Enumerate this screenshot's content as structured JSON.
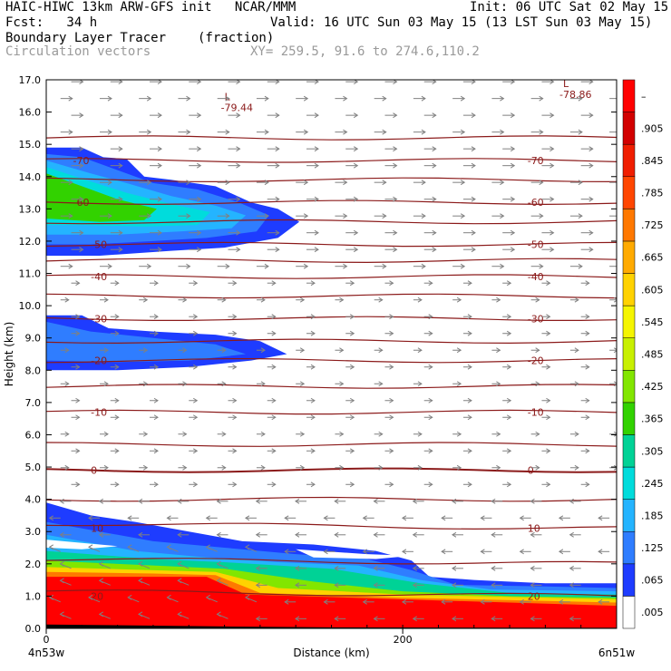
{
  "header": {
    "line1_left": "HAIC-HIWC 13km ARW-GFS init   NCAR/MMM",
    "line1_right": "Init: 06 UTC Sat 02 May 15",
    "fcst": "Fcst:   34 h",
    "valid": "Valid: 16 UTC Sun 03 May 15 (13 LST Sun 03 May 15)",
    "field": "Boundary Layer Tracer",
    "units": "(fraction)",
    "vectors": "Circulation vectors",
    "xy": "XY= 259.5, 91.6 to 274.6,110.2"
  },
  "colors": {
    "contour": "#8b1a1a",
    "vector": "#808080",
    "frame": "#000000"
  },
  "chart_data": {
    "type": "heatmap",
    "title": "Boundary Layer Tracer",
    "units": "(fraction)",
    "xlabel": "Distance (km)",
    "ylabel": "Height (km)",
    "xlim": [
      0,
      320
    ],
    "ylim": [
      0,
      17
    ],
    "x_ticks": [
      {
        "value": 0,
        "label": "0"
      },
      {
        "value": 200,
        "label": "200"
      }
    ],
    "x_end_labels": {
      "left": "4n53w",
      "right": "6n51w"
    },
    "y_ticks": [
      "0.0",
      "1.0",
      "2.0",
      "3.0",
      "4.0",
      "5.0",
      "6.0",
      "7.0",
      "8.0",
      "9.0",
      "10.0",
      "11.0",
      "12.0",
      "13.0",
      "14.0",
      "15.0",
      "16.0",
      "17.0"
    ],
    "colorbar": {
      "labels": [
        ".005",
        ".065",
        ".125",
        ".185",
        ".245",
        ".305",
        ".365",
        ".425",
        ".485",
        ".545",
        ".605",
        ".665",
        ".725",
        ".785",
        ".845",
        ".905",
        "–"
      ],
      "colors": [
        "#ffffff",
        "#1e3cff",
        "#2f7dff",
        "#24b4ff",
        "#00dcdc",
        "#00d296",
        "#32d200",
        "#82e600",
        "#c8f000",
        "#f5f500",
        "#ffd200",
        "#ffaa00",
        "#ff7800",
        "#ff4600",
        "#f01e00",
        "#d20000",
        "#ff0000"
      ]
    },
    "temperature_contours": [
      {
        "height_km": 15.2,
        "label": ""
      },
      {
        "height_km": 14.5,
        "label": "-70"
      },
      {
        "height_km": 13.9,
        "label": ""
      },
      {
        "height_km": 13.2,
        "label": "-60"
      },
      {
        "height_km": 12.6,
        "label": ""
      },
      {
        "height_km": 11.9,
        "label": "-50"
      },
      {
        "height_km": 11.4,
        "label": ""
      },
      {
        "height_km": 10.9,
        "label": "-40"
      },
      {
        "height_km": 10.3,
        "label": ""
      },
      {
        "height_km": 9.6,
        "label": "-30"
      },
      {
        "height_km": 8.9,
        "label": ""
      },
      {
        "height_km": 8.3,
        "label": "-20"
      },
      {
        "height_km": 7.5,
        "label": ""
      },
      {
        "height_km": 6.7,
        "label": "-10"
      },
      {
        "height_km": 5.7,
        "label": ""
      },
      {
        "height_km": 4.9,
        "label": "0"
      },
      {
        "height_km": 4.0,
        "label": ""
      },
      {
        "height_km": 3.1,
        "label": "10"
      },
      {
        "height_km": 2.0,
        "label": ""
      },
      {
        "height_km": 1.0,
        "label": "20"
      }
    ],
    "minima": [
      {
        "x_km": 100,
        "height_km": 16.2,
        "label": "L",
        "value": "-79.44"
      },
      {
        "x_km": 290,
        "height_km": 16.6,
        "label": "L",
        "value": "-78.86"
      }
    ],
    "tracer_regions": [
      {
        "name": "upper outflow",
        "base_km": 11.5,
        "top_km": 14.9,
        "x_extent_km": [
          0,
          142
        ],
        "max_value": 0.5
      },
      {
        "name": "mid outflow",
        "base_km": 8.0,
        "top_km": 9.8,
        "x_extent_km": [
          0,
          135
        ],
        "max_value": 0.13
      },
      {
        "name": "boundary layer",
        "base_km": 0.0,
        "top_km": 3.9,
        "x_extent_km": [
          0,
          320
        ],
        "max_value": 1.0
      }
    ]
  }
}
